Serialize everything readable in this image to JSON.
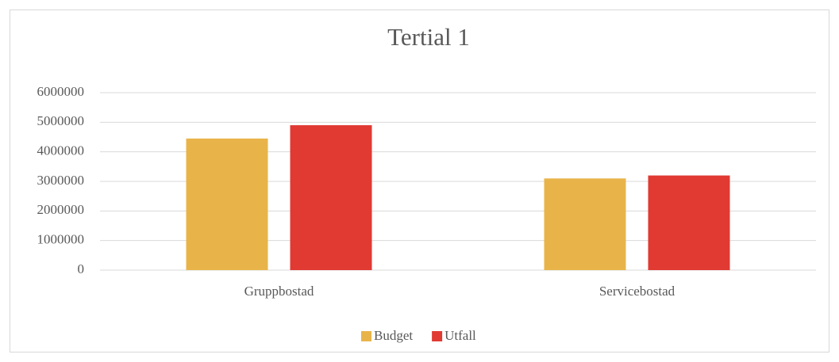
{
  "chart_data": {
    "type": "bar",
    "title": "Tertial 1",
    "categories": [
      "Gruppbostad",
      "Servicebostad"
    ],
    "series": [
      {
        "name": "Budget",
        "color": "#e8b44a",
        "values": [
          4450000,
          3100000
        ]
      },
      {
        "name": "Utfall",
        "color": "#e03a33",
        "values": [
          4900000,
          3200000
        ]
      }
    ],
    "ylim": [
      0,
      6000000
    ],
    "yticks": [
      0,
      1000000,
      2000000,
      3000000,
      4000000,
      5000000,
      6000000
    ],
    "grid": true,
    "legend": "bottom"
  }
}
